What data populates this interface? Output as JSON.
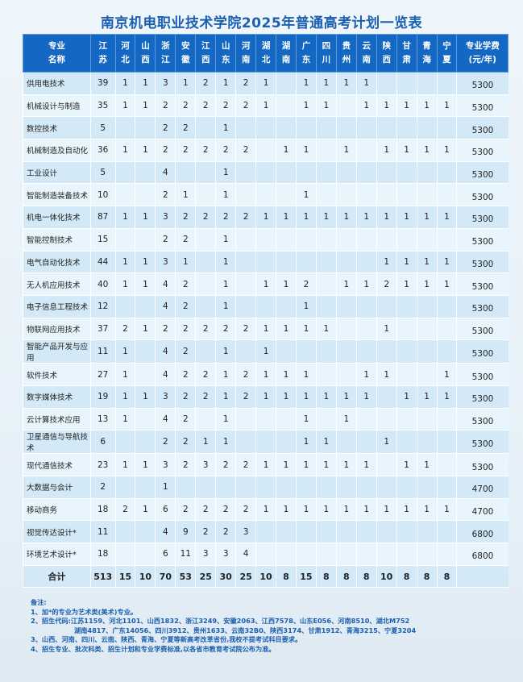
{
  "title": "南京机电职业技术学院2025年普通高考计划一览表",
  "header": {
    "major": [
      "专业",
      "名称"
    ],
    "provinces": [
      [
        "江",
        "苏"
      ],
      [
        "河",
        "北"
      ],
      [
        "山",
        "西"
      ],
      [
        "浙",
        "江"
      ],
      [
        "安",
        "徽"
      ],
      [
        "江",
        "西"
      ],
      [
        "山",
        "东"
      ],
      [
        "河",
        "南"
      ],
      [
        "湖",
        "北"
      ],
      [
        "湖",
        "南"
      ],
      [
        "广",
        "东"
      ],
      [
        "四",
        "川"
      ],
      [
        "贵",
        "州"
      ],
      [
        "云",
        "南"
      ],
      [
        "陕",
        "西"
      ],
      [
        "甘",
        "肃"
      ],
      [
        "青",
        "海"
      ],
      [
        "宁",
        "夏"
      ]
    ],
    "fee": [
      "专业学费",
      "(元/年)"
    ]
  },
  "rows": [
    {
      "name": "供用电技术",
      "values": [
        "39",
        "1",
        "1",
        "3",
        "1",
        "2",
        "1",
        "2",
        "1",
        "",
        "1",
        "1",
        "1",
        "1",
        "",
        "",
        "",
        ""
      ],
      "fee": "5300"
    },
    {
      "name": "机械设计与制造",
      "values": [
        "35",
        "1",
        "1",
        "2",
        "2",
        "2",
        "2",
        "2",
        "1",
        "",
        "1",
        "1",
        "",
        "1",
        "1",
        "1",
        "1",
        "1"
      ],
      "fee": "5300"
    },
    {
      "name": "数控技术",
      "values": [
        "5",
        "",
        "",
        "2",
        "2",
        "",
        "1",
        "",
        "",
        "",
        "",
        "",
        "",
        "",
        "",
        "",
        "",
        ""
      ],
      "fee": "5300"
    },
    {
      "name": "机械制造及自动化",
      "values": [
        "36",
        "1",
        "1",
        "2",
        "2",
        "2",
        "2",
        "2",
        "",
        "1",
        "1",
        "",
        "1",
        "",
        "1",
        "1",
        "1",
        "1"
      ],
      "fee": "5300"
    },
    {
      "name": "工业设计",
      "values": [
        "5",
        "",
        "",
        "4",
        "",
        "",
        "1",
        "",
        "",
        "",
        "",
        "",
        "",
        "",
        "",
        "",
        "",
        ""
      ],
      "fee": "5300"
    },
    {
      "name": "智能制造装备技术",
      "values": [
        "10",
        "",
        "",
        "2",
        "1",
        "",
        "1",
        "",
        "",
        "",
        "1",
        "",
        "",
        "",
        "",
        "",
        "",
        ""
      ],
      "fee": "5300"
    },
    {
      "name": "机电一体化技术",
      "values": [
        "87",
        "1",
        "1",
        "3",
        "2",
        "2",
        "2",
        "2",
        "1",
        "1",
        "1",
        "1",
        "1",
        "1",
        "1",
        "1",
        "1",
        "1"
      ],
      "fee": "5300"
    },
    {
      "name": "智能控制技术",
      "values": [
        "15",
        "",
        "",
        "2",
        "2",
        "",
        "1",
        "",
        "",
        "",
        "",
        "",
        "",
        "",
        "",
        "",
        "",
        ""
      ],
      "fee": "5300"
    },
    {
      "name": "电气自动化技术",
      "values": [
        "44",
        "1",
        "1",
        "3",
        "1",
        "",
        "1",
        "",
        "",
        "",
        "",
        "",
        "",
        "",
        "1",
        "1",
        "1",
        "1"
      ],
      "fee": "5300"
    },
    {
      "name": "无人机应用技术",
      "values": [
        "40",
        "1",
        "1",
        "4",
        "2",
        "",
        "1",
        "",
        "1",
        "1",
        "2",
        "",
        "1",
        "1",
        "2",
        "1",
        "1",
        "1"
      ],
      "fee": "5300"
    },
    {
      "name": "电子信息工程技术",
      "values": [
        "12",
        "",
        "",
        "4",
        "2",
        "",
        "1",
        "",
        "",
        "",
        "1",
        "",
        "",
        "",
        "",
        "",
        "",
        ""
      ],
      "fee": "5300"
    },
    {
      "name": "物联网应用技术",
      "values": [
        "37",
        "2",
        "1",
        "2",
        "2",
        "2",
        "2",
        "2",
        "1",
        "1",
        "1",
        "1",
        "",
        "",
        "1",
        "",
        "",
        ""
      ],
      "fee": "5300"
    },
    {
      "name": "智能产品开发与应用",
      "values": [
        "11",
        "1",
        "",
        "4",
        "2",
        "",
        "1",
        "",
        "1",
        "",
        "",
        "",
        "",
        "",
        "",
        "",
        "",
        ""
      ],
      "fee": "5300"
    },
    {
      "name": "软件技术",
      "values": [
        "27",
        "1",
        "",
        "4",
        "2",
        "2",
        "1",
        "2",
        "1",
        "1",
        "1",
        "",
        "",
        "1",
        "1",
        "",
        "",
        "1"
      ],
      "fee": "5300"
    },
    {
      "name": "数字媒体技术",
      "values": [
        "19",
        "1",
        "1",
        "3",
        "2",
        "2",
        "1",
        "2",
        "1",
        "1",
        "1",
        "1",
        "1",
        "1",
        "",
        "1",
        "1",
        "1"
      ],
      "fee": "5300"
    },
    {
      "name": "云计算技术应用",
      "values": [
        "13",
        "1",
        "",
        "4",
        "2",
        "",
        "1",
        "",
        "",
        "",
        "1",
        "",
        "1",
        "",
        "",
        "",
        "",
        ""
      ],
      "fee": "5300"
    },
    {
      "name": "卫星通信与导航技术",
      "values": [
        "6",
        "",
        "",
        "2",
        "2",
        "1",
        "1",
        "",
        "",
        "",
        "1",
        "1",
        "",
        "",
        "1",
        "",
        "",
        ""
      ],
      "fee": "5300"
    },
    {
      "name": "现代通信技术",
      "values": [
        "23",
        "1",
        "1",
        "3",
        "2",
        "3",
        "2",
        "2",
        "1",
        "1",
        "1",
        "1",
        "1",
        "1",
        "",
        "1",
        "1",
        ""
      ],
      "fee": "5300"
    },
    {
      "name": "大数据与会计",
      "values": [
        "2",
        "",
        "",
        "1",
        "",
        "",
        "",
        "",
        "",
        "",
        "",
        "",
        "",
        "",
        "",
        "",
        "",
        ""
      ],
      "fee": "4700"
    },
    {
      "name": "移动商务",
      "values": [
        "18",
        "2",
        "1",
        "6",
        "2",
        "2",
        "2",
        "2",
        "1",
        "1",
        "1",
        "1",
        "1",
        "1",
        "1",
        "1",
        "1",
        "1"
      ],
      "fee": "4700"
    },
    {
      "name": "视觉传达设计*",
      "values": [
        "11",
        "",
        "",
        "4",
        "9",
        "2",
        "2",
        "3",
        "",
        "",
        "",
        "",
        "",
        "",
        "",
        "",
        "",
        ""
      ],
      "fee": "6800"
    },
    {
      "name": "环境艺术设计*",
      "values": [
        "18",
        "",
        "",
        "6",
        "11",
        "3",
        "3",
        "4",
        "",
        "",
        "",
        "",
        "",
        "",
        "",
        "",
        "",
        ""
      ],
      "fee": "6800"
    }
  ],
  "total": {
    "label": "合计",
    "values": [
      "513",
      "15",
      "10",
      "70",
      "53",
      "25",
      "30",
      "25",
      "10",
      "8",
      "15",
      "8",
      "8",
      "8",
      "10",
      "8",
      "8",
      "8"
    ]
  },
  "notes": {
    "heading": "备注:",
    "items": [
      "1、加*的专业为艺术类(美术)专业。",
      "2、招生代码:江苏1159、河北1101、山西1832、浙江3249、安徽2063、江西7578、山东E056、河南8510、湖北M752",
      "湖南4817、广东14056、四川3912、贵州1633、云南32B0、陕西3174、甘肃1912、青海3215、宁夏3204",
      "3、山西、河南、四川、云南、陕西、青海、宁夏等新高考改革省份,我校不提考试科目要求。",
      "4、招生专业、批次科类、招生计划和专业学费标准,以各省市教育考试院公布为准。"
    ]
  },
  "colors": {
    "header_bg": "#1468c3",
    "title": "#1a5fb0",
    "row_even": "#d3e9f8",
    "row_odd": "#e9f5fd"
  }
}
